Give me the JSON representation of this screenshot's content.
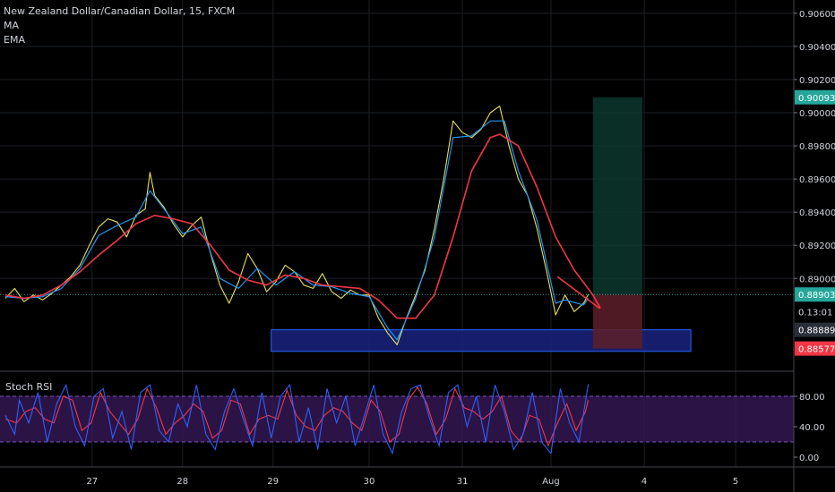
{
  "legend": {
    "symbol_line": "New Zealand Dollar/Canadian Dollar, 15, FXCM",
    "ma_label": "MA",
    "ema_label": "EMA"
  },
  "stoch": {
    "label": "Stoch RSI",
    "ticks": [
      {
        "value": 80,
        "label": "80.00"
      },
      {
        "value": 40,
        "label": "40.00"
      },
      {
        "value": 0,
        "label": "0.00"
      }
    ],
    "band": [
      20,
      80
    ],
    "colors": {
      "k": "#2962ff",
      "d": "#f23645",
      "band_fill": "#3b1a5e",
      "band_line": "#7e57c2"
    }
  },
  "chart_data": {
    "type": "line",
    "title": "New Zealand Dollar/Canadian Dollar, 15, FXCM",
    "price_axis": {
      "ylim": [
        0.8844,
        0.9068
      ],
      "ticks": [
        {
          "value": 0.906,
          "label": "0.90600"
        },
        {
          "value": 0.904,
          "label": "0.90400"
        },
        {
          "value": 0.902,
          "label": "0.90200"
        },
        {
          "value": 0.9,
          "label": "0.90000"
        },
        {
          "value": 0.898,
          "label": "0.89800"
        },
        {
          "value": 0.896,
          "label": "0.89600"
        },
        {
          "value": 0.894,
          "label": "0.89400"
        },
        {
          "value": 0.892,
          "label": "0.89200"
        },
        {
          "value": 0.89,
          "label": "0.89000"
        }
      ]
    },
    "time_axis": {
      "xlim": [
        26.0,
        5.7
      ],
      "ticks": [
        {
          "t": 26.93,
          "label": "27"
        },
        {
          "t": 27.9,
          "label": "28"
        },
        {
          "t": 28.87,
          "label": "29"
        },
        {
          "t": 29.9,
          "label": "30"
        },
        {
          "t": 30.9,
          "label": "31"
        },
        {
          "t": 31.85,
          "label": "Aug"
        },
        {
          "t": 32.85,
          "label": "4"
        },
        {
          "t": 33.83,
          "label": "5"
        }
      ]
    },
    "series": [
      {
        "name": "Price",
        "color": "#e8e35a",
        "points": [
          [
            26.0,
            0.8888
          ],
          [
            26.1,
            0.8894
          ],
          [
            26.2,
            0.8886
          ],
          [
            26.3,
            0.889
          ],
          [
            26.4,
            0.8887
          ],
          [
            26.5,
            0.8891
          ],
          [
            26.6,
            0.8896
          ],
          [
            26.7,
            0.8901
          ],
          [
            26.8,
            0.8908
          ],
          [
            26.9,
            0.892
          ],
          [
            27.0,
            0.8931
          ],
          [
            27.1,
            0.8936
          ],
          [
            27.2,
            0.8934
          ],
          [
            27.3,
            0.8925
          ],
          [
            27.4,
            0.8938
          ],
          [
            27.5,
            0.8942
          ],
          [
            27.55,
            0.8964
          ],
          [
            27.6,
            0.895
          ],
          [
            27.7,
            0.8943
          ],
          [
            27.8,
            0.8933
          ],
          [
            27.9,
            0.8925
          ],
          [
            28.0,
            0.8932
          ],
          [
            28.1,
            0.8937
          ],
          [
            28.2,
            0.8915
          ],
          [
            28.3,
            0.8896
          ],
          [
            28.4,
            0.8885
          ],
          [
            28.5,
            0.8898
          ],
          [
            28.6,
            0.8915
          ],
          [
            28.7,
            0.8906
          ],
          [
            28.8,
            0.8892
          ],
          [
            28.9,
            0.8898
          ],
          [
            29.0,
            0.8908
          ],
          [
            29.1,
            0.8904
          ],
          [
            29.2,
            0.8896
          ],
          [
            29.3,
            0.8894
          ],
          [
            29.4,
            0.8903
          ],
          [
            29.5,
            0.8892
          ],
          [
            29.6,
            0.8888
          ],
          [
            29.7,
            0.8893
          ],
          [
            29.8,
            0.889
          ],
          [
            29.9,
            0.889
          ],
          [
            30.0,
            0.8876
          ],
          [
            30.1,
            0.8867
          ],
          [
            30.2,
            0.886
          ],
          [
            30.3,
            0.8876
          ],
          [
            30.4,
            0.889
          ],
          [
            30.5,
            0.8905
          ],
          [
            30.6,
            0.893
          ],
          [
            30.7,
            0.896
          ],
          [
            30.8,
            0.8995
          ],
          [
            30.9,
            0.8988
          ],
          [
            31.0,
            0.8985
          ],
          [
            31.1,
            0.899
          ],
          [
            31.2,
            0.9
          ],
          [
            31.3,
            0.9004
          ],
          [
            31.4,
            0.898
          ],
          [
            31.5,
            0.896
          ],
          [
            31.6,
            0.895
          ],
          [
            31.7,
            0.893
          ],
          [
            31.8,
            0.8905
          ],
          [
            31.9,
            0.8878
          ],
          [
            32.0,
            0.889
          ],
          [
            32.1,
            0.888
          ],
          [
            32.2,
            0.8885
          ],
          [
            32.25,
            0.88903
          ]
        ]
      },
      {
        "name": "MA",
        "color": "#2196f3",
        "points": [
          [
            26.0,
            0.8889
          ],
          [
            26.2,
            0.8888
          ],
          [
            26.4,
            0.8889
          ],
          [
            26.6,
            0.8894
          ],
          [
            26.8,
            0.8906
          ],
          [
            27.0,
            0.8926
          ],
          [
            27.2,
            0.8932
          ],
          [
            27.4,
            0.8937
          ],
          [
            27.55,
            0.8953
          ],
          [
            27.7,
            0.8942
          ],
          [
            27.9,
            0.8927
          ],
          [
            28.1,
            0.8931
          ],
          [
            28.3,
            0.89
          ],
          [
            28.5,
            0.8894
          ],
          [
            28.7,
            0.8906
          ],
          [
            28.9,
            0.8896
          ],
          [
            29.1,
            0.8904
          ],
          [
            29.3,
            0.8896
          ],
          [
            29.5,
            0.8895
          ],
          [
            29.7,
            0.8891
          ],
          [
            29.9,
            0.8889
          ],
          [
            30.1,
            0.887
          ],
          [
            30.2,
            0.8863
          ],
          [
            30.4,
            0.8888
          ],
          [
            30.6,
            0.8925
          ],
          [
            30.8,
            0.8985
          ],
          [
            31.0,
            0.8986
          ],
          [
            31.2,
            0.8995
          ],
          [
            31.35,
            0.8995
          ],
          [
            31.5,
            0.8965
          ],
          [
            31.7,
            0.8935
          ],
          [
            31.9,
            0.8885
          ],
          [
            32.0,
            0.8887
          ],
          [
            32.2,
            0.8884
          ],
          [
            32.25,
            0.8888
          ]
        ]
      },
      {
        "name": "EMA",
        "color": "#f23645",
        "points": [
          [
            26.0,
            0.889
          ],
          [
            26.2,
            0.8888
          ],
          [
            26.4,
            0.889
          ],
          [
            26.6,
            0.8896
          ],
          [
            26.8,
            0.8904
          ],
          [
            27.0,
            0.8914
          ],
          [
            27.2,
            0.8923
          ],
          [
            27.4,
            0.8933
          ],
          [
            27.6,
            0.8938
          ],
          [
            27.8,
            0.8936
          ],
          [
            28.0,
            0.8933
          ],
          [
            28.2,
            0.892
          ],
          [
            28.4,
            0.8905
          ],
          [
            28.6,
            0.8899
          ],
          [
            28.8,
            0.8896
          ],
          [
            29.0,
            0.8902
          ],
          [
            29.2,
            0.89
          ],
          [
            29.4,
            0.8896
          ],
          [
            29.6,
            0.8895
          ],
          [
            29.8,
            0.8894
          ],
          [
            30.0,
            0.8887
          ],
          [
            30.2,
            0.8876
          ],
          [
            30.4,
            0.8876
          ],
          [
            30.6,
            0.889
          ],
          [
            30.8,
            0.8925
          ],
          [
            31.0,
            0.8965
          ],
          [
            31.2,
            0.8985
          ],
          [
            31.3,
            0.8987
          ],
          [
            31.5,
            0.898
          ],
          [
            31.7,
            0.8955
          ],
          [
            31.9,
            0.8925
          ],
          [
            32.1,
            0.8905
          ],
          [
            32.3,
            0.889
          ],
          [
            32.38,
            0.8882
          ]
        ]
      }
    ],
    "trendline": {
      "color": "#f23645",
      "from": [
        31.92,
        0.8901
      ],
      "to": [
        32.37,
        0.8882
      ]
    },
    "support_zone": {
      "color": "#1a237e",
      "border": "#2962ff",
      "x": [
        28.85,
        33.35
      ],
      "y": [
        0.8856,
        0.8869
      ]
    },
    "position_long": {
      "entry": 0.88903,
      "target": 0.90093,
      "stop": 0.88577,
      "x": [
        32.3,
        32.83
      ],
      "profit_color": "#0d3b30",
      "loss_color": "#5d1f27"
    },
    "last_price_line": {
      "value": 0.88903,
      "color": "#26a69a"
    },
    "price_labels": [
      {
        "value": 0.90093,
        "label": "0.90093",
        "bg": "#26a69a",
        "fg": "#ffffff"
      },
      {
        "value": 0.88903,
        "label": "0.88903",
        "bg": "#26a69a",
        "fg": "#ffffff"
      },
      {
        "value": 0.888,
        "label": "0.13:01",
        "bg": "#000000",
        "fg": "#d1d4dc"
      },
      {
        "value": 0.8869,
        "label": "0.88889",
        "bg": "#2a2e39",
        "fg": "#ffffff"
      },
      {
        "value": 0.88577,
        "label": "0.88577",
        "bg": "#f23645",
        "fg": "#ffffff"
      }
    ],
    "stoch_rsi": {
      "k": [
        [
          26.0,
          55
        ],
        [
          26.1,
          30
        ],
        [
          26.15,
          75
        ],
        [
          26.25,
          45
        ],
        [
          26.35,
          85
        ],
        [
          26.45,
          20
        ],
        [
          26.55,
          70
        ],
        [
          26.65,
          95
        ],
        [
          26.75,
          40
        ],
        [
          26.85,
          15
        ],
        [
          26.95,
          80
        ],
        [
          27.05,
          90
        ],
        [
          27.15,
          25
        ],
        [
          27.25,
          60
        ],
        [
          27.35,
          10
        ],
        [
          27.45,
          85
        ],
        [
          27.55,
          95
        ],
        [
          27.65,
          35
        ],
        [
          27.75,
          20
        ],
        [
          27.85,
          70
        ],
        [
          27.95,
          40
        ],
        [
          28.05,
          95
        ],
        [
          28.15,
          30
        ],
        [
          28.25,
          10
        ],
        [
          28.35,
          60
        ],
        [
          28.45,
          90
        ],
        [
          28.55,
          50
        ],
        [
          28.65,
          15
        ],
        [
          28.75,
          85
        ],
        [
          28.85,
          25
        ],
        [
          28.95,
          80
        ],
        [
          29.05,
          95
        ],
        [
          29.15,
          20
        ],
        [
          29.25,
          65
        ],
        [
          29.35,
          10
        ],
        [
          29.45,
          90
        ],
        [
          29.55,
          45
        ],
        [
          29.65,
          80
        ],
        [
          29.75,
          15
        ],
        [
          29.85,
          55
        ],
        [
          29.95,
          95
        ],
        [
          30.05,
          30
        ],
        [
          30.15,
          5
        ],
        [
          30.25,
          60
        ],
        [
          30.35,
          90
        ],
        [
          30.45,
          95
        ],
        [
          30.55,
          50
        ],
        [
          30.65,
          15
        ],
        [
          30.75,
          85
        ],
        [
          30.85,
          95
        ],
        [
          30.95,
          40
        ],
        [
          31.05,
          80
        ],
        [
          31.15,
          20
        ],
        [
          31.25,
          95
        ],
        [
          31.35,
          60
        ],
        [
          31.45,
          10
        ],
        [
          31.55,
          30
        ],
        [
          31.65,
          85
        ],
        [
          31.75,
          20
        ],
        [
          31.85,
          5
        ],
        [
          31.95,
          90
        ],
        [
          32.05,
          45
        ],
        [
          32.15,
          20
        ],
        [
          32.25,
          96
        ]
      ],
      "d": [
        [
          26.0,
          50
        ],
        [
          26.12,
          45
        ],
        [
          26.22,
          60
        ],
        [
          26.32,
          65
        ],
        [
          26.42,
          50
        ],
        [
          26.52,
          45
        ],
        [
          26.62,
          80
        ],
        [
          26.72,
          75
        ],
        [
          26.82,
          35
        ],
        [
          26.92,
          45
        ],
        [
          27.02,
          85
        ],
        [
          27.12,
          60
        ],
        [
          27.22,
          45
        ],
        [
          27.32,
          30
        ],
        [
          27.42,
          50
        ],
        [
          27.52,
          90
        ],
        [
          27.62,
          65
        ],
        [
          27.72,
          30
        ],
        [
          27.82,
          45
        ],
        [
          27.92,
          55
        ],
        [
          28.02,
          70
        ],
        [
          28.12,
          60
        ],
        [
          28.22,
          25
        ],
        [
          28.32,
          35
        ],
        [
          28.42,
          75
        ],
        [
          28.52,
          70
        ],
        [
          28.62,
          30
        ],
        [
          28.72,
          50
        ],
        [
          28.82,
          55
        ],
        [
          28.92,
          50
        ],
        [
          29.02,
          88
        ],
        [
          29.12,
          55
        ],
        [
          29.22,
          40
        ],
        [
          29.32,
          35
        ],
        [
          29.42,
          55
        ],
        [
          29.52,
          65
        ],
        [
          29.62,
          60
        ],
        [
          29.72,
          45
        ],
        [
          29.82,
          35
        ],
        [
          29.92,
          75
        ],
        [
          30.02,
          60
        ],
        [
          30.12,
          20
        ],
        [
          30.22,
          30
        ],
        [
          30.32,
          75
        ],
        [
          30.42,
          92
        ],
        [
          30.52,
          70
        ],
        [
          30.62,
          30
        ],
        [
          30.72,
          50
        ],
        [
          30.82,
          90
        ],
        [
          30.92,
          65
        ],
        [
          31.02,
          60
        ],
        [
          31.12,
          50
        ],
        [
          31.22,
          60
        ],
        [
          31.32,
          80
        ],
        [
          31.42,
          35
        ],
        [
          31.52,
          20
        ],
        [
          31.62,
          55
        ],
        [
          31.72,
          50
        ],
        [
          31.82,
          15
        ],
        [
          31.92,
          45
        ],
        [
          32.02,
          70
        ],
        [
          32.12,
          35
        ],
        [
          32.22,
          60
        ],
        [
          32.25,
          75
        ]
      ]
    }
  }
}
